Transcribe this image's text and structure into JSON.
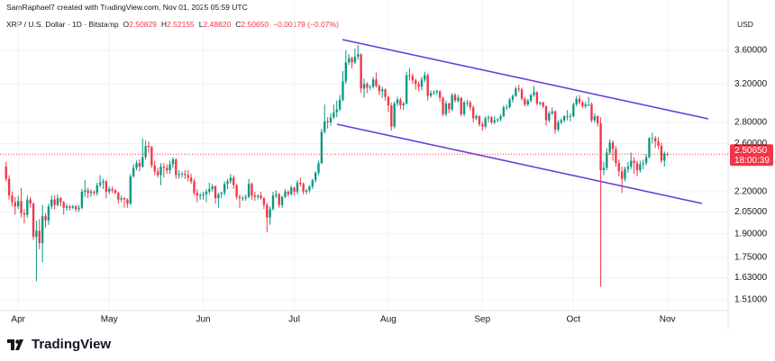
{
  "header": "SamRaphael7 created with TradingView.com, Nov 01, 2025 05:59 UTC",
  "brand": "TradingView",
  "chart_data": {
    "type": "candlestick",
    "title": "XRP / U.S. Dollar · 1D · Bitstamp",
    "ohlc_legend": [
      {
        "key": "O",
        "value": "2.50829"
      },
      {
        "key": "H",
        "value": "2.52155"
      },
      {
        "key": "L",
        "value": "2.48820"
      },
      {
        "key": "C",
        "value": "2.50650"
      }
    ],
    "change": "−0.00179 (−0.07%)",
    "currency": "USD",
    "last_price_label": "2.50650",
    "countdown": "18:00:39",
    "up_color": "#089981",
    "down_color": "#f23645",
    "log_scale": true,
    "grid": true,
    "xlim": [
      -2,
      238
    ],
    "xticks": [
      {
        "value": 4,
        "label": "Apr"
      },
      {
        "value": 34,
        "label": "May"
      },
      {
        "value": 65,
        "label": "Jun"
      },
      {
        "value": 95,
        "label": "Jul"
      },
      {
        "value": 126,
        "label": "Aug"
      },
      {
        "value": 157,
        "label": "Sep"
      },
      {
        "value": 187,
        "label": "Oct"
      },
      {
        "value": 218,
        "label": "Nov"
      }
    ],
    "ylim": [
      1.454,
      4.09
    ],
    "yticks": [
      {
        "value": 3.6,
        "label": "3.60000"
      },
      {
        "value": 3.2,
        "label": "3.20000"
      },
      {
        "value": 2.8,
        "label": "2.80000"
      },
      {
        "value": 2.6,
        "label": "2.60000"
      },
      {
        "value": 2.2,
        "label": "2.20000"
      },
      {
        "value": 2.05,
        "label": "2.05000"
      },
      {
        "value": 1.9,
        "label": "1.90000"
      },
      {
        "value": 1.75,
        "label": "1.75000"
      },
      {
        "value": 1.63,
        "label": "1.63000"
      },
      {
        "value": 1.51,
        "label": "1.51000"
      }
    ],
    "candles": [
      [
        2.4,
        2.44,
        2.28,
        2.3
      ],
      [
        2.3,
        2.33,
        2.14,
        2.17
      ],
      [
        2.17,
        2.2,
        2.09,
        2.12
      ],
      [
        2.12,
        2.16,
        2.03,
        2.09
      ],
      [
        2.09,
        2.17,
        2.07,
        2.13
      ],
      [
        2.13,
        2.23,
        2.01,
        2.04
      ],
      [
        2.04,
        2.07,
        1.97,
        2.03
      ],
      [
        2.03,
        2.17,
        2.01,
        2.14
      ],
      [
        2.14,
        2.16,
        2.08,
        2.11
      ],
      [
        2.11,
        2.12,
        1.86,
        1.88
      ],
      [
        1.88,
        1.99,
        1.61,
        1.92
      ],
      [
        1.92,
        2.0,
        1.8,
        1.84
      ],
      [
        1.84,
        2.1,
        1.72,
        2.02
      ],
      [
        2.02,
        2.04,
        1.94,
        1.99
      ],
      [
        1.99,
        2.11,
        1.96,
        2.09
      ],
      [
        2.09,
        2.17,
        2.07,
        2.14
      ],
      [
        2.14,
        2.17,
        2.07,
        2.1
      ],
      [
        2.1,
        2.18,
        2.09,
        2.15
      ],
      [
        2.15,
        2.16,
        2.09,
        2.12
      ],
      [
        2.12,
        2.13,
        2.03,
        2.08
      ],
      [
        2.08,
        2.11,
        2.06,
        2.09
      ],
      [
        2.09,
        2.1,
        2.06,
        2.08
      ],
      [
        2.08,
        2.1,
        2.07,
        2.09
      ],
      [
        2.09,
        2.1,
        2.05,
        2.07
      ],
      [
        2.07,
        2.1,
        2.05,
        2.08
      ],
      [
        2.08,
        2.22,
        2.07,
        2.2
      ],
      [
        2.2,
        2.29,
        2.16,
        2.21
      ],
      [
        2.21,
        2.23,
        2.15,
        2.19
      ],
      [
        2.19,
        2.22,
        2.16,
        2.2
      ],
      [
        2.2,
        2.21,
        2.17,
        2.19
      ],
      [
        2.19,
        2.27,
        2.17,
        2.25
      ],
      [
        2.25,
        2.33,
        2.23,
        2.27
      ],
      [
        2.27,
        2.3,
        2.22,
        2.28
      ],
      [
        2.28,
        2.29,
        2.15,
        2.2
      ],
      [
        2.2,
        2.24,
        2.18,
        2.22
      ],
      [
        2.22,
        2.24,
        2.19,
        2.21
      ],
      [
        2.21,
        2.22,
        2.18,
        2.19
      ],
      [
        2.19,
        2.2,
        2.11,
        2.14
      ],
      [
        2.14,
        2.17,
        2.12,
        2.15
      ],
      [
        2.15,
        2.16,
        2.08,
        2.14
      ],
      [
        2.14,
        2.15,
        2.08,
        2.11
      ],
      [
        2.11,
        2.34,
        2.1,
        2.32
      ],
      [
        2.32,
        2.42,
        2.31,
        2.39
      ],
      [
        2.39,
        2.45,
        2.37,
        2.43
      ],
      [
        2.43,
        2.46,
        2.36,
        2.4
      ],
      [
        2.4,
        2.65,
        2.39,
        2.48
      ],
      [
        2.48,
        2.63,
        2.46,
        2.58
      ],
      [
        2.58,
        2.62,
        2.52,
        2.57
      ],
      [
        2.57,
        2.58,
        2.39,
        2.41
      ],
      [
        2.41,
        2.45,
        2.33,
        2.36
      ],
      [
        2.36,
        2.39,
        2.31,
        2.33
      ],
      [
        2.33,
        2.43,
        2.25,
        2.4
      ],
      [
        2.4,
        2.43,
        2.31,
        2.39
      ],
      [
        2.39,
        2.42,
        2.34,
        2.37
      ],
      [
        2.37,
        2.45,
        2.34,
        2.42
      ],
      [
        2.42,
        2.48,
        2.39,
        2.46
      ],
      [
        2.46,
        2.47,
        2.3,
        2.33
      ],
      [
        2.33,
        2.37,
        2.3,
        2.34
      ],
      [
        2.34,
        2.36,
        2.31,
        2.34
      ],
      [
        2.34,
        2.37,
        2.3,
        2.33
      ],
      [
        2.33,
        2.37,
        2.28,
        2.31
      ],
      [
        2.31,
        2.34,
        2.26,
        2.28
      ],
      [
        2.28,
        2.3,
        2.17,
        2.19
      ],
      [
        2.19,
        2.22,
        2.12,
        2.17
      ],
      [
        2.17,
        2.19,
        2.14,
        2.17
      ],
      [
        2.17,
        2.2,
        2.14,
        2.18
      ],
      [
        2.18,
        2.22,
        2.12,
        2.2
      ],
      [
        2.2,
        2.27,
        2.18,
        2.22
      ],
      [
        2.22,
        2.26,
        2.2,
        2.24
      ],
      [
        2.24,
        2.25,
        2.11,
        2.15
      ],
      [
        2.15,
        2.19,
        2.08,
        2.18
      ],
      [
        2.18,
        2.2,
        2.15,
        2.19
      ],
      [
        2.19,
        2.28,
        2.17,
        2.26
      ],
      [
        2.26,
        2.3,
        2.22,
        2.28
      ],
      [
        2.28,
        2.34,
        2.26,
        2.31
      ],
      [
        2.31,
        2.33,
        2.22,
        2.25
      ],
      [
        2.25,
        2.26,
        2.14,
        2.16
      ],
      [
        2.16,
        2.18,
        2.08,
        2.15
      ],
      [
        2.15,
        2.17,
        2.13,
        2.15
      ],
      [
        2.15,
        2.18,
        2.13,
        2.16
      ],
      [
        2.16,
        2.3,
        2.15,
        2.26
      ],
      [
        2.26,
        2.27,
        2.14,
        2.17
      ],
      [
        2.17,
        2.2,
        2.13,
        2.16
      ],
      [
        2.16,
        2.18,
        2.14,
        2.17
      ],
      [
        2.17,
        2.2,
        2.14,
        2.15
      ],
      [
        2.15,
        2.16,
        2.07,
        2.1
      ],
      [
        2.1,
        2.12,
        1.91,
        2.01
      ],
      [
        2.01,
        2.09,
        1.96,
        2.07
      ],
      [
        2.07,
        2.2,
        2.06,
        2.17
      ],
      [
        2.17,
        2.21,
        2.15,
        2.18
      ],
      [
        2.18,
        2.19,
        2.08,
        2.1
      ],
      [
        2.1,
        2.17,
        2.08,
        2.16
      ],
      [
        2.16,
        2.22,
        2.15,
        2.2
      ],
      [
        2.2,
        2.21,
        2.16,
        2.18
      ],
      [
        2.18,
        2.25,
        2.17,
        2.23
      ],
      [
        2.23,
        2.24,
        2.17,
        2.2
      ],
      [
        2.2,
        2.29,
        2.18,
        2.27
      ],
      [
        2.27,
        2.31,
        2.24,
        2.26
      ],
      [
        2.26,
        2.27,
        2.18,
        2.2
      ],
      [
        2.2,
        2.22,
        2.18,
        2.21
      ],
      [
        2.21,
        2.25,
        2.19,
        2.24
      ],
      [
        2.24,
        2.3,
        2.22,
        2.29
      ],
      [
        2.29,
        2.36,
        2.27,
        2.35
      ],
      [
        2.35,
        2.45,
        2.33,
        2.43
      ],
      [
        2.43,
        2.74,
        2.42,
        2.71
      ],
      [
        2.71,
        2.98,
        2.69,
        2.81
      ],
      [
        2.81,
        2.85,
        2.74,
        2.8
      ],
      [
        2.8,
        2.89,
        2.77,
        2.85
      ],
      [
        2.85,
        2.98,
        2.83,
        2.9
      ],
      [
        2.9,
        3.02,
        2.85,
        2.93
      ],
      [
        2.93,
        3.08,
        2.91,
        3.03
      ],
      [
        3.03,
        3.35,
        3.01,
        3.23
      ],
      [
        3.23,
        3.6,
        3.2,
        3.45
      ],
      [
        3.45,
        3.55,
        3.42,
        3.5
      ],
      [
        3.5,
        3.52,
        3.38,
        3.45
      ],
      [
        3.45,
        3.62,
        3.43,
        3.52
      ],
      [
        3.52,
        3.66,
        3.48,
        3.55
      ],
      [
        3.55,
        3.56,
        3.1,
        3.15
      ],
      [
        3.15,
        3.26,
        3.05,
        3.2
      ],
      [
        3.2,
        3.22,
        3.1,
        3.16
      ],
      [
        3.16,
        3.19,
        3.13,
        3.17
      ],
      [
        3.17,
        3.28,
        3.15,
        3.25
      ],
      [
        3.25,
        3.33,
        3.16,
        3.18
      ],
      [
        3.18,
        3.2,
        3.08,
        3.12
      ],
      [
        3.12,
        3.17,
        3.05,
        3.14
      ],
      [
        3.14,
        3.15,
        3.02,
        3.06
      ],
      [
        3.06,
        3.07,
        2.9,
        2.97
      ],
      [
        2.97,
        3.0,
        2.72,
        2.76
      ],
      [
        2.76,
        3.01,
        2.74,
        2.99
      ],
      [
        2.99,
        3.06,
        2.96,
        3.03
      ],
      [
        3.03,
        3.05,
        2.93,
        2.97
      ],
      [
        2.97,
        3.01,
        2.92,
        2.99
      ],
      [
        2.99,
        3.34,
        2.98,
        3.3
      ],
      [
        3.3,
        3.38,
        3.24,
        3.29
      ],
      [
        3.29,
        3.32,
        3.2,
        3.24
      ],
      [
        3.24,
        3.26,
        3.14,
        3.2
      ],
      [
        3.2,
        3.23,
        3.12,
        3.17
      ],
      [
        3.17,
        3.28,
        3.13,
        3.25
      ],
      [
        3.25,
        3.34,
        3.22,
        3.3
      ],
      [
        3.3,
        3.32,
        3.02,
        3.07
      ],
      [
        3.07,
        3.13,
        3.05,
        3.1
      ],
      [
        3.1,
        3.13,
        3.08,
        3.11
      ],
      [
        3.11,
        3.14,
        3.08,
        3.12
      ],
      [
        3.12,
        3.13,
        3.01,
        3.05
      ],
      [
        3.05,
        3.06,
        2.86,
        2.88
      ],
      [
        2.88,
        3.02,
        2.86,
        2.99
      ],
      [
        2.99,
        3.0,
        2.89,
        2.93
      ],
      [
        2.93,
        3.1,
        2.91,
        3.08
      ],
      [
        3.08,
        3.1,
        3.0,
        3.02
      ],
      [
        3.02,
        3.08,
        3.0,
        3.05
      ],
      [
        3.05,
        3.06,
        2.86,
        2.88
      ],
      [
        2.88,
        3.02,
        2.86,
        3.0
      ],
      [
        3.0,
        3.03,
        2.96,
        3.0
      ],
      [
        3.0,
        3.02,
        2.92,
        2.95
      ],
      [
        2.95,
        2.97,
        2.8,
        2.84
      ],
      [
        2.84,
        2.88,
        2.82,
        2.86
      ],
      [
        2.86,
        2.87,
        2.76,
        2.78
      ],
      [
        2.78,
        2.81,
        2.72,
        2.76
      ],
      [
        2.76,
        2.86,
        2.74,
        2.84
      ],
      [
        2.84,
        2.87,
        2.8,
        2.85
      ],
      [
        2.85,
        2.86,
        2.78,
        2.8
      ],
      [
        2.8,
        2.86,
        2.78,
        2.82
      ],
      [
        2.82,
        2.84,
        2.8,
        2.83
      ],
      [
        2.83,
        2.88,
        2.81,
        2.86
      ],
      [
        2.86,
        2.97,
        2.85,
        2.95
      ],
      [
        2.95,
        2.98,
        2.92,
        2.95
      ],
      [
        2.95,
        3.05,
        2.94,
        3.03
      ],
      [
        3.03,
        3.09,
        3.0,
        3.07
      ],
      [
        3.07,
        3.17,
        3.06,
        3.15
      ],
      [
        3.15,
        3.19,
        3.11,
        3.14
      ],
      [
        3.14,
        3.16,
        3.02,
        3.04
      ],
      [
        3.04,
        3.06,
        2.96,
        2.98
      ],
      [
        2.98,
        3.04,
        2.96,
        3.02
      ],
      [
        3.02,
        3.09,
        3.0,
        3.08
      ],
      [
        3.08,
        3.18,
        3.06,
        3.11
      ],
      [
        3.11,
        3.12,
        2.97,
        2.99
      ],
      [
        2.99,
        3.01,
        2.97,
        3.0
      ],
      [
        3.0,
        3.01,
        2.94,
        2.96
      ],
      [
        2.96,
        2.97,
        2.77,
        2.82
      ],
      [
        2.82,
        2.91,
        2.8,
        2.89
      ],
      [
        2.89,
        2.95,
        2.87,
        2.91
      ],
      [
        2.91,
        2.92,
        2.69,
        2.73
      ],
      [
        2.73,
        2.82,
        2.71,
        2.8
      ],
      [
        2.8,
        2.84,
        2.78,
        2.82
      ],
      [
        2.82,
        2.87,
        2.8,
        2.86
      ],
      [
        2.86,
        2.92,
        2.82,
        2.86
      ],
      [
        2.86,
        2.89,
        2.81,
        2.86
      ],
      [
        2.86,
        3.0,
        2.85,
        2.98
      ],
      [
        2.98,
        3.07,
        2.96,
        3.04
      ],
      [
        3.04,
        3.08,
        2.98,
        3.0
      ],
      [
        3.0,
        3.02,
        2.94,
        2.96
      ],
      [
        2.96,
        3.01,
        2.94,
        2.98
      ],
      [
        2.98,
        3.06,
        2.96,
        2.98
      ],
      [
        2.98,
        3.0,
        2.8,
        2.82
      ],
      [
        2.82,
        2.89,
        2.8,
        2.86
      ],
      [
        2.86,
        2.87,
        2.76,
        2.79
      ],
      [
        2.79,
        2.85,
        1.58,
        2.37
      ],
      [
        2.37,
        2.44,
        2.33,
        2.39
      ],
      [
        2.39,
        2.56,
        2.37,
        2.52
      ],
      [
        2.52,
        2.64,
        2.5,
        2.61
      ],
      [
        2.61,
        2.63,
        2.45,
        2.55
      ],
      [
        2.55,
        2.58,
        2.4,
        2.43
      ],
      [
        2.43,
        2.46,
        2.32,
        2.36
      ],
      [
        2.36,
        2.4,
        2.19,
        2.3
      ],
      [
        2.3,
        2.4,
        2.28,
        2.38
      ],
      [
        2.38,
        2.44,
        2.35,
        2.4
      ],
      [
        2.4,
        2.52,
        2.38,
        2.45
      ],
      [
        2.45,
        2.48,
        2.34,
        2.43
      ],
      [
        2.43,
        2.45,
        2.32,
        2.37
      ],
      [
        2.37,
        2.45,
        2.35,
        2.42
      ],
      [
        2.42,
        2.46,
        2.38,
        2.43
      ],
      [
        2.43,
        2.51,
        2.41,
        2.48
      ],
      [
        2.48,
        2.66,
        2.47,
        2.65
      ],
      [
        2.65,
        2.7,
        2.6,
        2.65
      ],
      [
        2.65,
        2.67,
        2.56,
        2.62
      ],
      [
        2.62,
        2.66,
        2.55,
        2.58
      ],
      [
        2.58,
        2.61,
        2.43,
        2.45
      ],
      [
        2.45,
        2.53,
        2.4,
        2.51
      ],
      [
        2.50829,
        2.52155,
        2.4882,
        2.5065
      ]
    ]
  }
}
